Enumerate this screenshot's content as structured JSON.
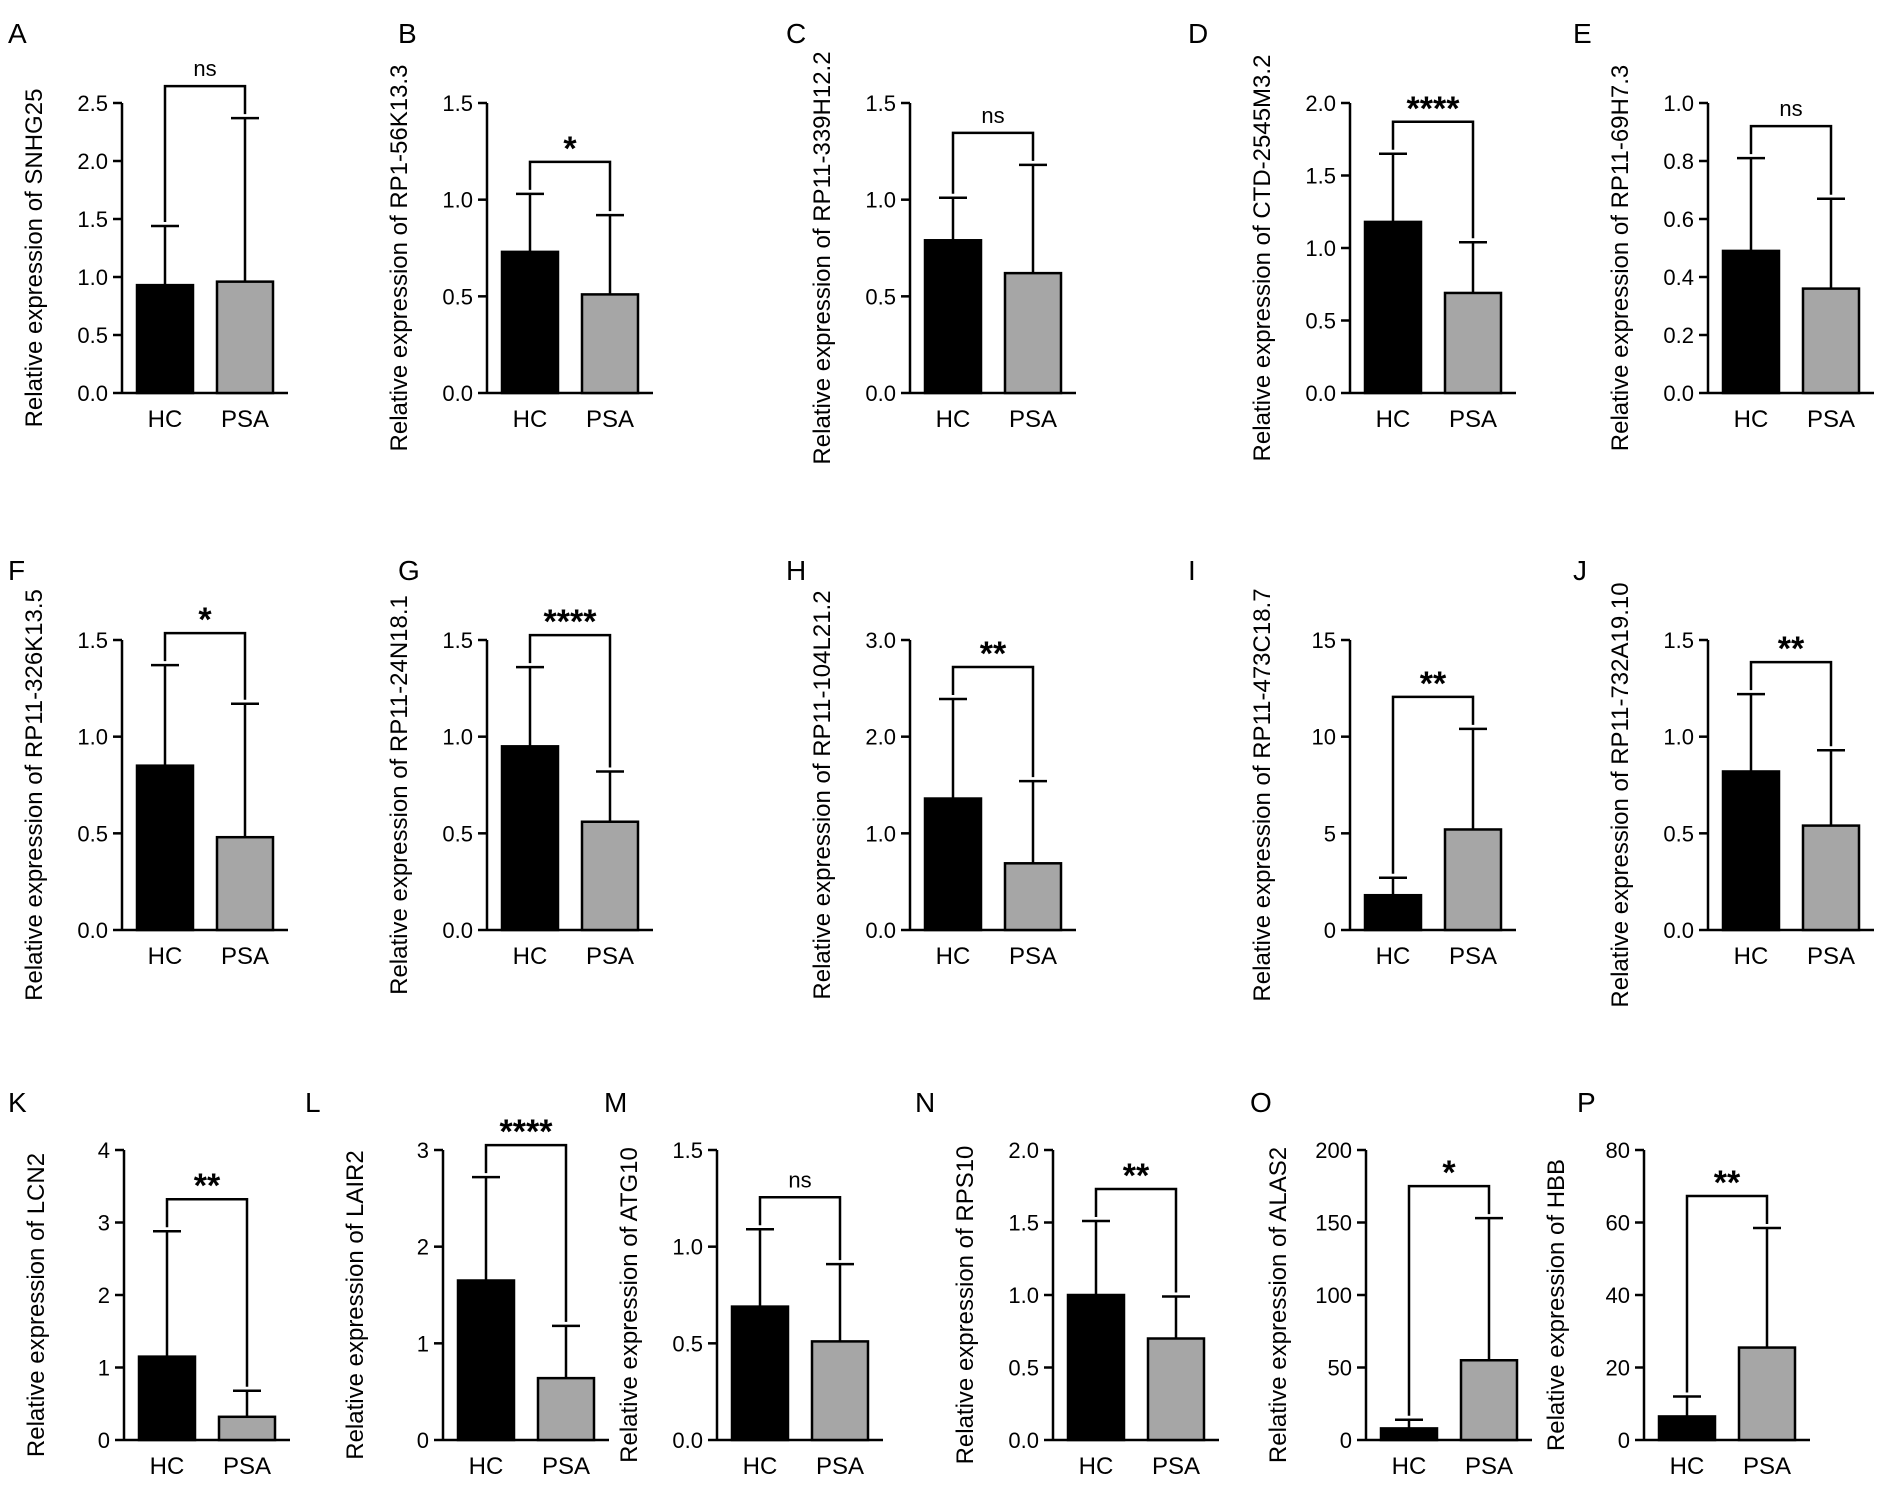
{
  "colors": {
    "hc": "#000000",
    "psa": "#a6a6a6",
    "axis": "#000000"
  },
  "chart_data": [
    {
      "panel": "A",
      "type": "bar",
      "categories": [
        "HC",
        "PSA"
      ],
      "ylabel": "Relative expression of SNHG25",
      "ylim": [
        0,
        2.5
      ],
      "ticks": [
        "0.0",
        "0.5",
        "1.0",
        "1.5",
        "2.0",
        "2.5"
      ],
      "values": [
        0.93,
        0.96
      ],
      "errors": [
        1.44,
        2.37
      ],
      "significance": "ns"
    },
    {
      "panel": "B",
      "type": "bar",
      "categories": [
        "HC",
        "PSA"
      ],
      "ylabel": "Relative expression of RP1-56K13.3",
      "ylim": [
        0,
        1.5
      ],
      "ticks": [
        "0.0",
        "0.5",
        "1.0",
        "1.5"
      ],
      "values": [
        0.73,
        0.51
      ],
      "errors": [
        1.03,
        0.92
      ],
      "significance": "*"
    },
    {
      "panel": "C",
      "type": "bar",
      "categories": [
        "HC",
        "PSA"
      ],
      "ylabel": "Relative expression of RP11-339H12.2",
      "ylim": [
        0,
        1.5
      ],
      "ticks": [
        "0.0",
        "0.5",
        "1.0",
        "1.5"
      ],
      "values": [
        0.79,
        0.62
      ],
      "errors": [
        1.01,
        1.18
      ],
      "significance": "ns"
    },
    {
      "panel": "D",
      "type": "bar",
      "categories": [
        "HC",
        "PSA"
      ],
      "ylabel": "Relative expression of CTD-2545M3.2",
      "ylim": [
        0,
        2.0
      ],
      "ticks": [
        "0.0",
        "0.5",
        "1.0",
        "1.5",
        "2.0"
      ],
      "values": [
        1.18,
        0.69
      ],
      "errors": [
        1.65,
        1.04
      ],
      "significance": "****"
    },
    {
      "panel": "E",
      "type": "bar",
      "categories": [
        "HC",
        "PSA"
      ],
      "ylabel": "Relative expression of RP11-69H7.3",
      "ylim": [
        0,
        1.0
      ],
      "ticks": [
        "0.0",
        "0.2",
        "0.4",
        "0.6",
        "0.8",
        "1.0"
      ],
      "values": [
        0.49,
        0.36
      ],
      "errors": [
        0.81,
        0.67
      ],
      "significance": "ns"
    },
    {
      "panel": "F",
      "type": "bar",
      "categories": [
        "HC",
        "PSA"
      ],
      "ylabel": "Relative expression of RP11-326K13.5",
      "ylim": [
        0,
        1.5
      ],
      "ticks": [
        "0.0",
        "0.5",
        "1.0",
        "1.5"
      ],
      "values": [
        0.85,
        0.48
      ],
      "errors": [
        1.37,
        1.17
      ],
      "significance": "*"
    },
    {
      "panel": "G",
      "type": "bar",
      "categories": [
        "HC",
        "PSA"
      ],
      "ylabel": "Relative expression of RP11-24N18.1",
      "ylim": [
        0,
        1.5
      ],
      "ticks": [
        "0.0",
        "0.5",
        "1.0",
        "1.5"
      ],
      "values": [
        0.95,
        0.56
      ],
      "errors": [
        1.36,
        0.82
      ],
      "significance": "****"
    },
    {
      "panel": "H",
      "type": "bar",
      "categories": [
        "HC",
        "PSA"
      ],
      "ylabel": "Relative expression of RP11-104L21.2",
      "ylim": [
        0,
        3.0
      ],
      "ticks": [
        "0.0",
        "1.0",
        "2.0",
        "3.0"
      ],
      "values": [
        1.36,
        0.69
      ],
      "errors": [
        2.39,
        1.54
      ],
      "significance": "**"
    },
    {
      "panel": "I",
      "type": "bar",
      "categories": [
        "HC",
        "PSA"
      ],
      "ylabel": "Relative expression of RP11-473C18.7",
      "ylim": [
        0,
        15
      ],
      "ticks": [
        "0",
        "5",
        "10",
        "15"
      ],
      "values": [
        1.8,
        5.2
      ],
      "errors": [
        2.7,
        10.4
      ],
      "significance": "**"
    },
    {
      "panel": "J",
      "type": "bar",
      "categories": [
        "HC",
        "PSA"
      ],
      "ylabel": "Relative expression of RP11-732A19.10",
      "ylim": [
        0,
        1.5
      ],
      "ticks": [
        "0.0",
        "0.5",
        "1.0",
        "1.5"
      ],
      "values": [
        0.82,
        0.54
      ],
      "errors": [
        1.22,
        0.93
      ],
      "significance": "**"
    },
    {
      "panel": "K",
      "type": "bar",
      "categories": [
        "HC",
        "PSA"
      ],
      "ylabel": "Relative expression of LCN2",
      "ylim": [
        0,
        4
      ],
      "ticks": [
        "0",
        "1",
        "2",
        "3",
        "4"
      ],
      "values": [
        1.15,
        0.32
      ],
      "errors": [
        2.88,
        0.68
      ],
      "significance": "**"
    },
    {
      "panel": "L",
      "type": "bar",
      "categories": [
        "HC",
        "PSA"
      ],
      "ylabel": "Relative expression of LAIR2",
      "ylim": [
        0,
        3
      ],
      "ticks": [
        "0",
        "1",
        "2",
        "3"
      ],
      "values": [
        1.65,
        0.64
      ],
      "errors": [
        2.72,
        1.18
      ],
      "significance": "****"
    },
    {
      "panel": "M",
      "type": "bar",
      "categories": [
        "HC",
        "PSA"
      ],
      "ylabel": "Relative expression of ATG10",
      "ylim": [
        0,
        1.5
      ],
      "ticks": [
        "0.0",
        "0.5",
        "1.0",
        "1.5"
      ],
      "values": [
        0.69,
        0.51
      ],
      "errors": [
        1.09,
        0.91
      ],
      "significance": "ns"
    },
    {
      "panel": "N",
      "type": "bar",
      "categories": [
        "HC",
        "PSA"
      ],
      "ylabel": "Relative expression of RPS10",
      "ylim": [
        0,
        2.0
      ],
      "ticks": [
        "0.0",
        "0.5",
        "1.0",
        "1.5",
        "2.0"
      ],
      "values": [
        1.0,
        0.7
      ],
      "errors": [
        1.51,
        0.99
      ],
      "significance": "**"
    },
    {
      "panel": "O",
      "type": "bar",
      "categories": [
        "HC",
        "PSA"
      ],
      "ylabel": "Relative expression of ALAS2",
      "ylim": [
        0,
        200
      ],
      "ticks": [
        "0",
        "50",
        "100",
        "150",
        "200"
      ],
      "values": [
        8,
        55
      ],
      "errors": [
        14,
        153
      ],
      "significance": "*"
    },
    {
      "panel": "P",
      "type": "bar",
      "categories": [
        "HC",
        "PSA"
      ],
      "ylabel": "Relative expression of HBB",
      "ylim": [
        0,
        80
      ],
      "ticks": [
        "0",
        "20",
        "40",
        "60",
        "80"
      ],
      "values": [
        6.5,
        25.5
      ],
      "errors": [
        12,
        58.5
      ],
      "significance": "**"
    }
  ]
}
